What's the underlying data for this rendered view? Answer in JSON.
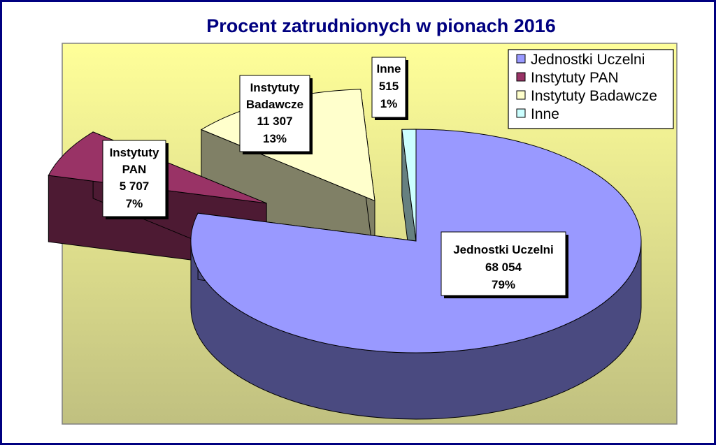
{
  "chart_data": {
    "type": "pie",
    "title": "Procent zatrudnionych w pionach 2016",
    "slices": [
      {
        "name": "Jednostki Uczelni",
        "value": "68 054",
        "percent": "79%",
        "pct": 79,
        "color": "#9999ff",
        "side_color": "#4a4a80"
      },
      {
        "name": "Instytuty PAN",
        "value": "5 707",
        "percent": "7%",
        "pct": 7,
        "color": "#993366",
        "side_color": "#4d1a33"
      },
      {
        "name": "Instytuty Badawcze",
        "value": "11 307",
        "percent": "13%",
        "pct": 13,
        "color": "#ffffcc",
        "side_color": "#808066"
      },
      {
        "name": "Inne",
        "value": "515",
        "percent": "1%",
        "pct": 1,
        "color": "#ccffff",
        "side_color": "#668080"
      }
    ],
    "legend": {
      "position": "top-right",
      "items": [
        "Jednostki Uczelni",
        "Instytuty PAN",
        "Instytuty Badawcze",
        "Inne"
      ]
    },
    "colors": {
      "title": "#000080",
      "frame_border": "#000080",
      "plot_top": "#ffff99",
      "plot_bottom": "#c0c080"
    }
  }
}
